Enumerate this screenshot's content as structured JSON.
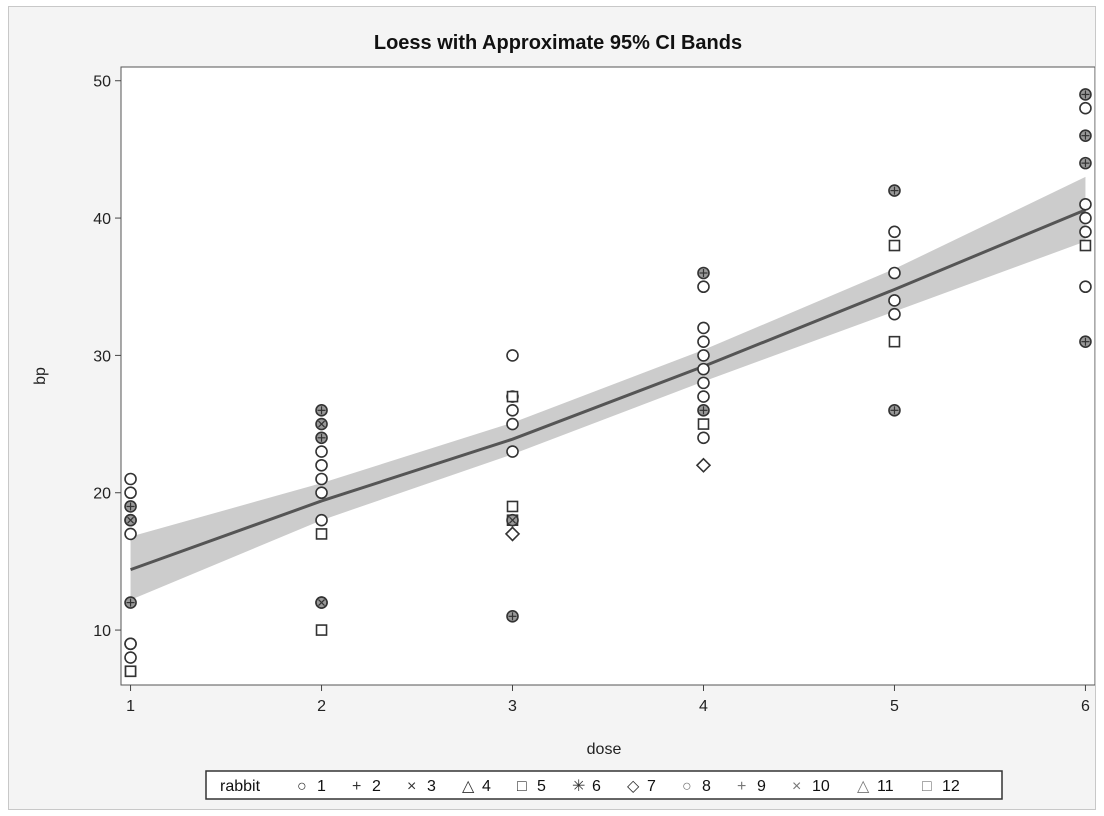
{
  "chart_data": {
    "type": "scatter",
    "title": "Loess with Approximate 95% CI Bands",
    "xlabel": "dose",
    "ylabel": "bp",
    "xlim": [
      0.95,
      6.05
    ],
    "ylim": [
      6,
      51
    ],
    "xticks": [
      "1",
      "2",
      "3",
      "4",
      "5",
      "6"
    ],
    "yticks": [
      "10",
      "20",
      "30",
      "40",
      "50"
    ],
    "legend": {
      "title": "rabbit",
      "placement": "bottom",
      "entries": [
        {
          "label": "1",
          "glyph": "○"
        },
        {
          "label": "2",
          "glyph": "+"
        },
        {
          "label": "3",
          "glyph": "×"
        },
        {
          "label": "4",
          "glyph": "△"
        },
        {
          "label": "5",
          "glyph": "□"
        },
        {
          "label": "6",
          "glyph": "✳"
        },
        {
          "label": "7",
          "glyph": "◇"
        },
        {
          "label": "8",
          "glyph": "○"
        },
        {
          "label": "9",
          "glyph": "+"
        },
        {
          "label": "10",
          "glyph": "×"
        },
        {
          "label": "11",
          "glyph": "△"
        },
        {
          "label": "12",
          "glyph": "□"
        }
      ]
    },
    "loess_fit": {
      "x": [
        1,
        2,
        3,
        4,
        5,
        6
      ],
      "y": [
        14.4,
        19.4,
        23.9,
        29.2,
        34.8,
        40.6
      ],
      "lower": [
        12.2,
        18.0,
        22.8,
        28.1,
        33.2,
        38.3
      ],
      "upper": [
        16.8,
        20.7,
        25.1,
        30.4,
        36.3,
        43.0
      ]
    },
    "points": [
      {
        "x": 1,
        "y": 21,
        "m": "o"
      },
      {
        "x": 1,
        "y": 20,
        "m": "o"
      },
      {
        "x": 1,
        "y": 19,
        "m": "p"
      },
      {
        "x": 1,
        "y": 18,
        "m": "o"
      },
      {
        "x": 1,
        "y": 18,
        "m": "x"
      },
      {
        "x": 1,
        "y": 17,
        "m": "o"
      },
      {
        "x": 1,
        "y": 12,
        "m": "p"
      },
      {
        "x": 1,
        "y": 9,
        "m": "x"
      },
      {
        "x": 1,
        "y": 9,
        "m": "o"
      },
      {
        "x": 1,
        "y": 8,
        "m": "o"
      },
      {
        "x": 1,
        "y": 7,
        "m": "s"
      },
      {
        "x": 1,
        "y": 7,
        "m": "s"
      },
      {
        "x": 2,
        "y": 26,
        "m": "p"
      },
      {
        "x": 2,
        "y": 25,
        "m": "x"
      },
      {
        "x": 2,
        "y": 24,
        "m": "p"
      },
      {
        "x": 2,
        "y": 23,
        "m": "o"
      },
      {
        "x": 2,
        "y": 22,
        "m": "o"
      },
      {
        "x": 2,
        "y": 21,
        "m": "o"
      },
      {
        "x": 2,
        "y": 20,
        "m": "o"
      },
      {
        "x": 2,
        "y": 18,
        "m": "o"
      },
      {
        "x": 2,
        "y": 17,
        "m": "s"
      },
      {
        "x": 2,
        "y": 12,
        "m": "p"
      },
      {
        "x": 2,
        "y": 12,
        "m": "x"
      },
      {
        "x": 2,
        "y": 10,
        "m": "s"
      },
      {
        "x": 3,
        "y": 30,
        "m": "o"
      },
      {
        "x": 3,
        "y": 27,
        "m": "p"
      },
      {
        "x": 3,
        "y": 27,
        "m": "s"
      },
      {
        "x": 3,
        "y": 26,
        "m": "o"
      },
      {
        "x": 3,
        "y": 25,
        "m": "o"
      },
      {
        "x": 3,
        "y": 23,
        "m": "o"
      },
      {
        "x": 3,
        "y": 19,
        "m": "s"
      },
      {
        "x": 3,
        "y": 18,
        "m": "s"
      },
      {
        "x": 3,
        "y": 18,
        "m": "x"
      },
      {
        "x": 3,
        "y": 17,
        "m": "d"
      },
      {
        "x": 3,
        "y": 11,
        "m": "p"
      },
      {
        "x": 4,
        "y": 36,
        "m": "p"
      },
      {
        "x": 4,
        "y": 35,
        "m": "o"
      },
      {
        "x": 4,
        "y": 32,
        "m": "o"
      },
      {
        "x": 4,
        "y": 31,
        "m": "o"
      },
      {
        "x": 4,
        "y": 30,
        "m": "o"
      },
      {
        "x": 4,
        "y": 29,
        "m": "o"
      },
      {
        "x": 4,
        "y": 28,
        "m": "o"
      },
      {
        "x": 4,
        "y": 27,
        "m": "o"
      },
      {
        "x": 4,
        "y": 26,
        "m": "p"
      },
      {
        "x": 4,
        "y": 25,
        "m": "s"
      },
      {
        "x": 4,
        "y": 24,
        "m": "o"
      },
      {
        "x": 4,
        "y": 22,
        "m": "d"
      },
      {
        "x": 5,
        "y": 42,
        "m": "p"
      },
      {
        "x": 5,
        "y": 39,
        "m": "o"
      },
      {
        "x": 5,
        "y": 38,
        "m": "s"
      },
      {
        "x": 5,
        "y": 36,
        "m": "o"
      },
      {
        "x": 5,
        "y": 34,
        "m": "o"
      },
      {
        "x": 5,
        "y": 33,
        "m": "o"
      },
      {
        "x": 5,
        "y": 31,
        "m": "s"
      },
      {
        "x": 5,
        "y": 26,
        "m": "p"
      },
      {
        "x": 6,
        "y": 49,
        "m": "p"
      },
      {
        "x": 6,
        "y": 48,
        "m": "o"
      },
      {
        "x": 6,
        "y": 46,
        "m": "p"
      },
      {
        "x": 6,
        "y": 44,
        "m": "p"
      },
      {
        "x": 6,
        "y": 41,
        "m": "o"
      },
      {
        "x": 6,
        "y": 40,
        "m": "o"
      },
      {
        "x": 6,
        "y": 39,
        "m": "o"
      },
      {
        "x": 6,
        "y": 38,
        "m": "s"
      },
      {
        "x": 6,
        "y": 35,
        "m": "o"
      },
      {
        "x": 6,
        "y": 31,
        "m": "p"
      }
    ],
    "colors": {
      "band": "#cccccc",
      "line": "#555555",
      "marker": "#333333",
      "marker_fill": "#999999",
      "plot_bg": "#ffffff",
      "frame_bg": "#f4f4f4"
    }
  }
}
